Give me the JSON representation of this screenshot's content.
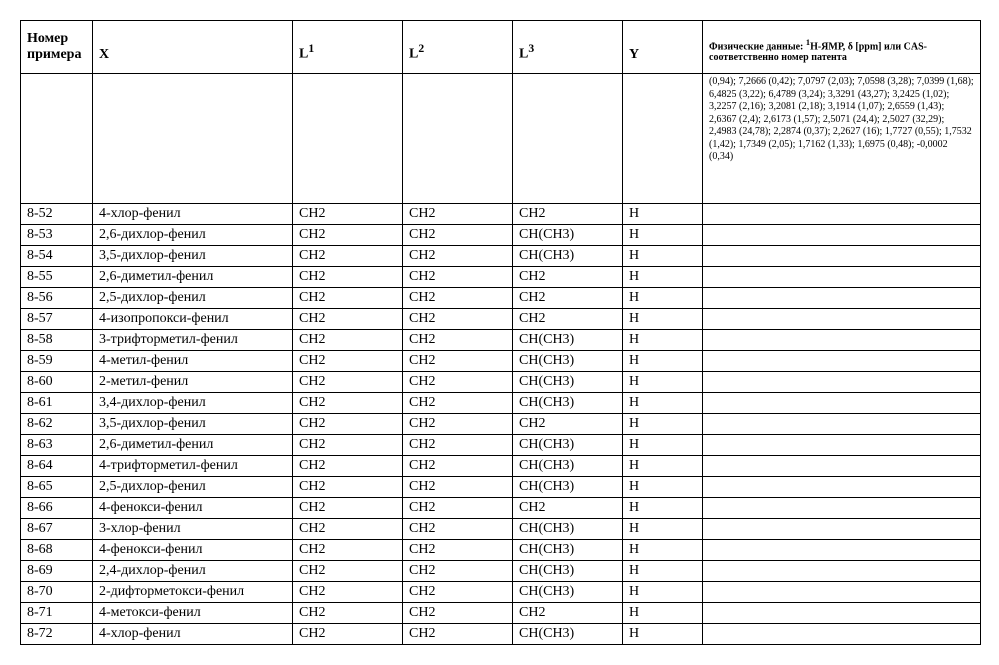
{
  "columns": {
    "num": "Номер примера",
    "x": "X",
    "l1_pre": "L",
    "l1_sup": "1",
    "l2_pre": "L",
    "l2_sup": "2",
    "l3_pre": "L",
    "l3_sup": "3",
    "y": "Y",
    "phys_pre": "Физические данные: ",
    "phys_sup1_pre": "1",
    "phys_mid1": "H-ЯМР, δ [ppm] или CAS-соответственно номер патента"
  },
  "first_row_phys": "(0,94); 7,2666 (0,42); 7,0797 (2,03); 7,0598 (3,28); 7,0399 (1,68); 6,4825 (3,22); 6,4789 (3,24); 3,3291 (43,27); 3,2425 (1,02); 3,2257 (2,16); 3,2081 (2,18); 3,1914 (1,07); 2,6559 (1,43); 2,6367 (2,4); 2,6173 (1,57); 2,5071 (24,4); 2,5027 (32,29); 2,4983 (24,78); 2,2874 (0,37); 2,2627 (16); 1,7727 (0,55); 1,7532 (1,42); 1,7349 (2,05); 1,7162 (1,33); 1,6975 (0,48); -0,0002 (0,34)",
  "rows": [
    {
      "num": "8-52",
      "x": "4-хлор-фенил",
      "l1": "CH2",
      "l2": "CH2",
      "l3": "CH2",
      "y": "H",
      "phys": ""
    },
    {
      "num": "8-53",
      "x": "2,6-дихлор-фенил",
      "l1": "CH2",
      "l2": "CH2",
      "l3": "CH(CH3)",
      "y": "H",
      "phys": ""
    },
    {
      "num": "8-54",
      "x": "3,5-дихлор-фенил",
      "l1": "CH2",
      "l2": "CH2",
      "l3": "CH(CH3)",
      "y": "H",
      "phys": ""
    },
    {
      "num": "8-55",
      "x": "2,6-диметил-фенил",
      "l1": "CH2",
      "l2": "CH2",
      "l3": "CH2",
      "y": "H",
      "phys": ""
    },
    {
      "num": "8-56",
      "x": "2,5-дихлор-фенил",
      "l1": "CH2",
      "l2": "CH2",
      "l3": "CH2",
      "y": "H",
      "phys": ""
    },
    {
      "num": "8-57",
      "x": "4-изопропокси-фенил",
      "l1": "CH2",
      "l2": "CH2",
      "l3": "CH2",
      "y": "H",
      "phys": ""
    },
    {
      "num": "8-58",
      "x": "3-трифторметил-фенил",
      "l1": "CH2",
      "l2": "CH2",
      "l3": "CH(CH3)",
      "y": "H",
      "phys": ""
    },
    {
      "num": "8-59",
      "x": "4-метил-фенил",
      "l1": "CH2",
      "l2": "CH2",
      "l3": "CH(CH3)",
      "y": "H",
      "phys": ""
    },
    {
      "num": "8-60",
      "x": "2-метил-фенил",
      "l1": "CH2",
      "l2": "CH2",
      "l3": "CH(CH3)",
      "y": "H",
      "phys": ""
    },
    {
      "num": "8-61",
      "x": "3,4-дихлор-фенил",
      "l1": "CH2",
      "l2": "CH2",
      "l3": "CH(CH3)",
      "y": "H",
      "phys": ""
    },
    {
      "num": "8-62",
      "x": "3,5-дихлор-фенил",
      "l1": "CH2",
      "l2": "CH2",
      "l3": "CH2",
      "y": "H",
      "phys": ""
    },
    {
      "num": "8-63",
      "x": "2,6-диметил-фенил",
      "l1": "CH2",
      "l2": "CH2",
      "l3": "CH(CH3)",
      "y": "H",
      "phys": ""
    },
    {
      "num": "8-64",
      "x": "4-трифторметил-фенил",
      "l1": "CH2",
      "l2": "CH2",
      "l3": "CH(CH3)",
      "y": "H",
      "phys": ""
    },
    {
      "num": "8-65",
      "x": "2,5-дихлор-фенил",
      "l1": "CH2",
      "l2": "CH2",
      "l3": "CH(CH3)",
      "y": "H",
      "phys": ""
    },
    {
      "num": "8-66",
      "x": "4-фенокси-фенил",
      "l1": "CH2",
      "l2": "CH2",
      "l3": "CH2",
      "y": "H",
      "phys": ""
    },
    {
      "num": "8-67",
      "x": "3-хлор-фенил",
      "l1": "CH2",
      "l2": "CH2",
      "l3": "CH(CH3)",
      "y": "H",
      "phys": ""
    },
    {
      "num": "8-68",
      "x": "4-фенокси-фенил",
      "l1": "CH2",
      "l2": "CH2",
      "l3": "CH(CH3)",
      "y": "H",
      "phys": ""
    },
    {
      "num": "8-69",
      "x": "2,4-дихлор-фенил",
      "l1": "CH2",
      "l2": "CH2",
      "l3": "CH(CH3)",
      "y": "H",
      "phys": ""
    },
    {
      "num": "8-70",
      "x": "2-дифторметокси-фенил",
      "l1": "CH2",
      "l2": "CH2",
      "l3": "CH(CH3)",
      "y": "H",
      "phys": ""
    },
    {
      "num": "8-71",
      "x": "4-метокси-фенил",
      "l1": "CH2",
      "l2": "CH2",
      "l3": "CH2",
      "y": "H",
      "phys": ""
    },
    {
      "num": "8-72",
      "x": "4-хлор-фенил",
      "l1": "CH2",
      "l2": "CH2",
      "l3": "CH(CH3)",
      "y": "H",
      "phys": ""
    }
  ]
}
